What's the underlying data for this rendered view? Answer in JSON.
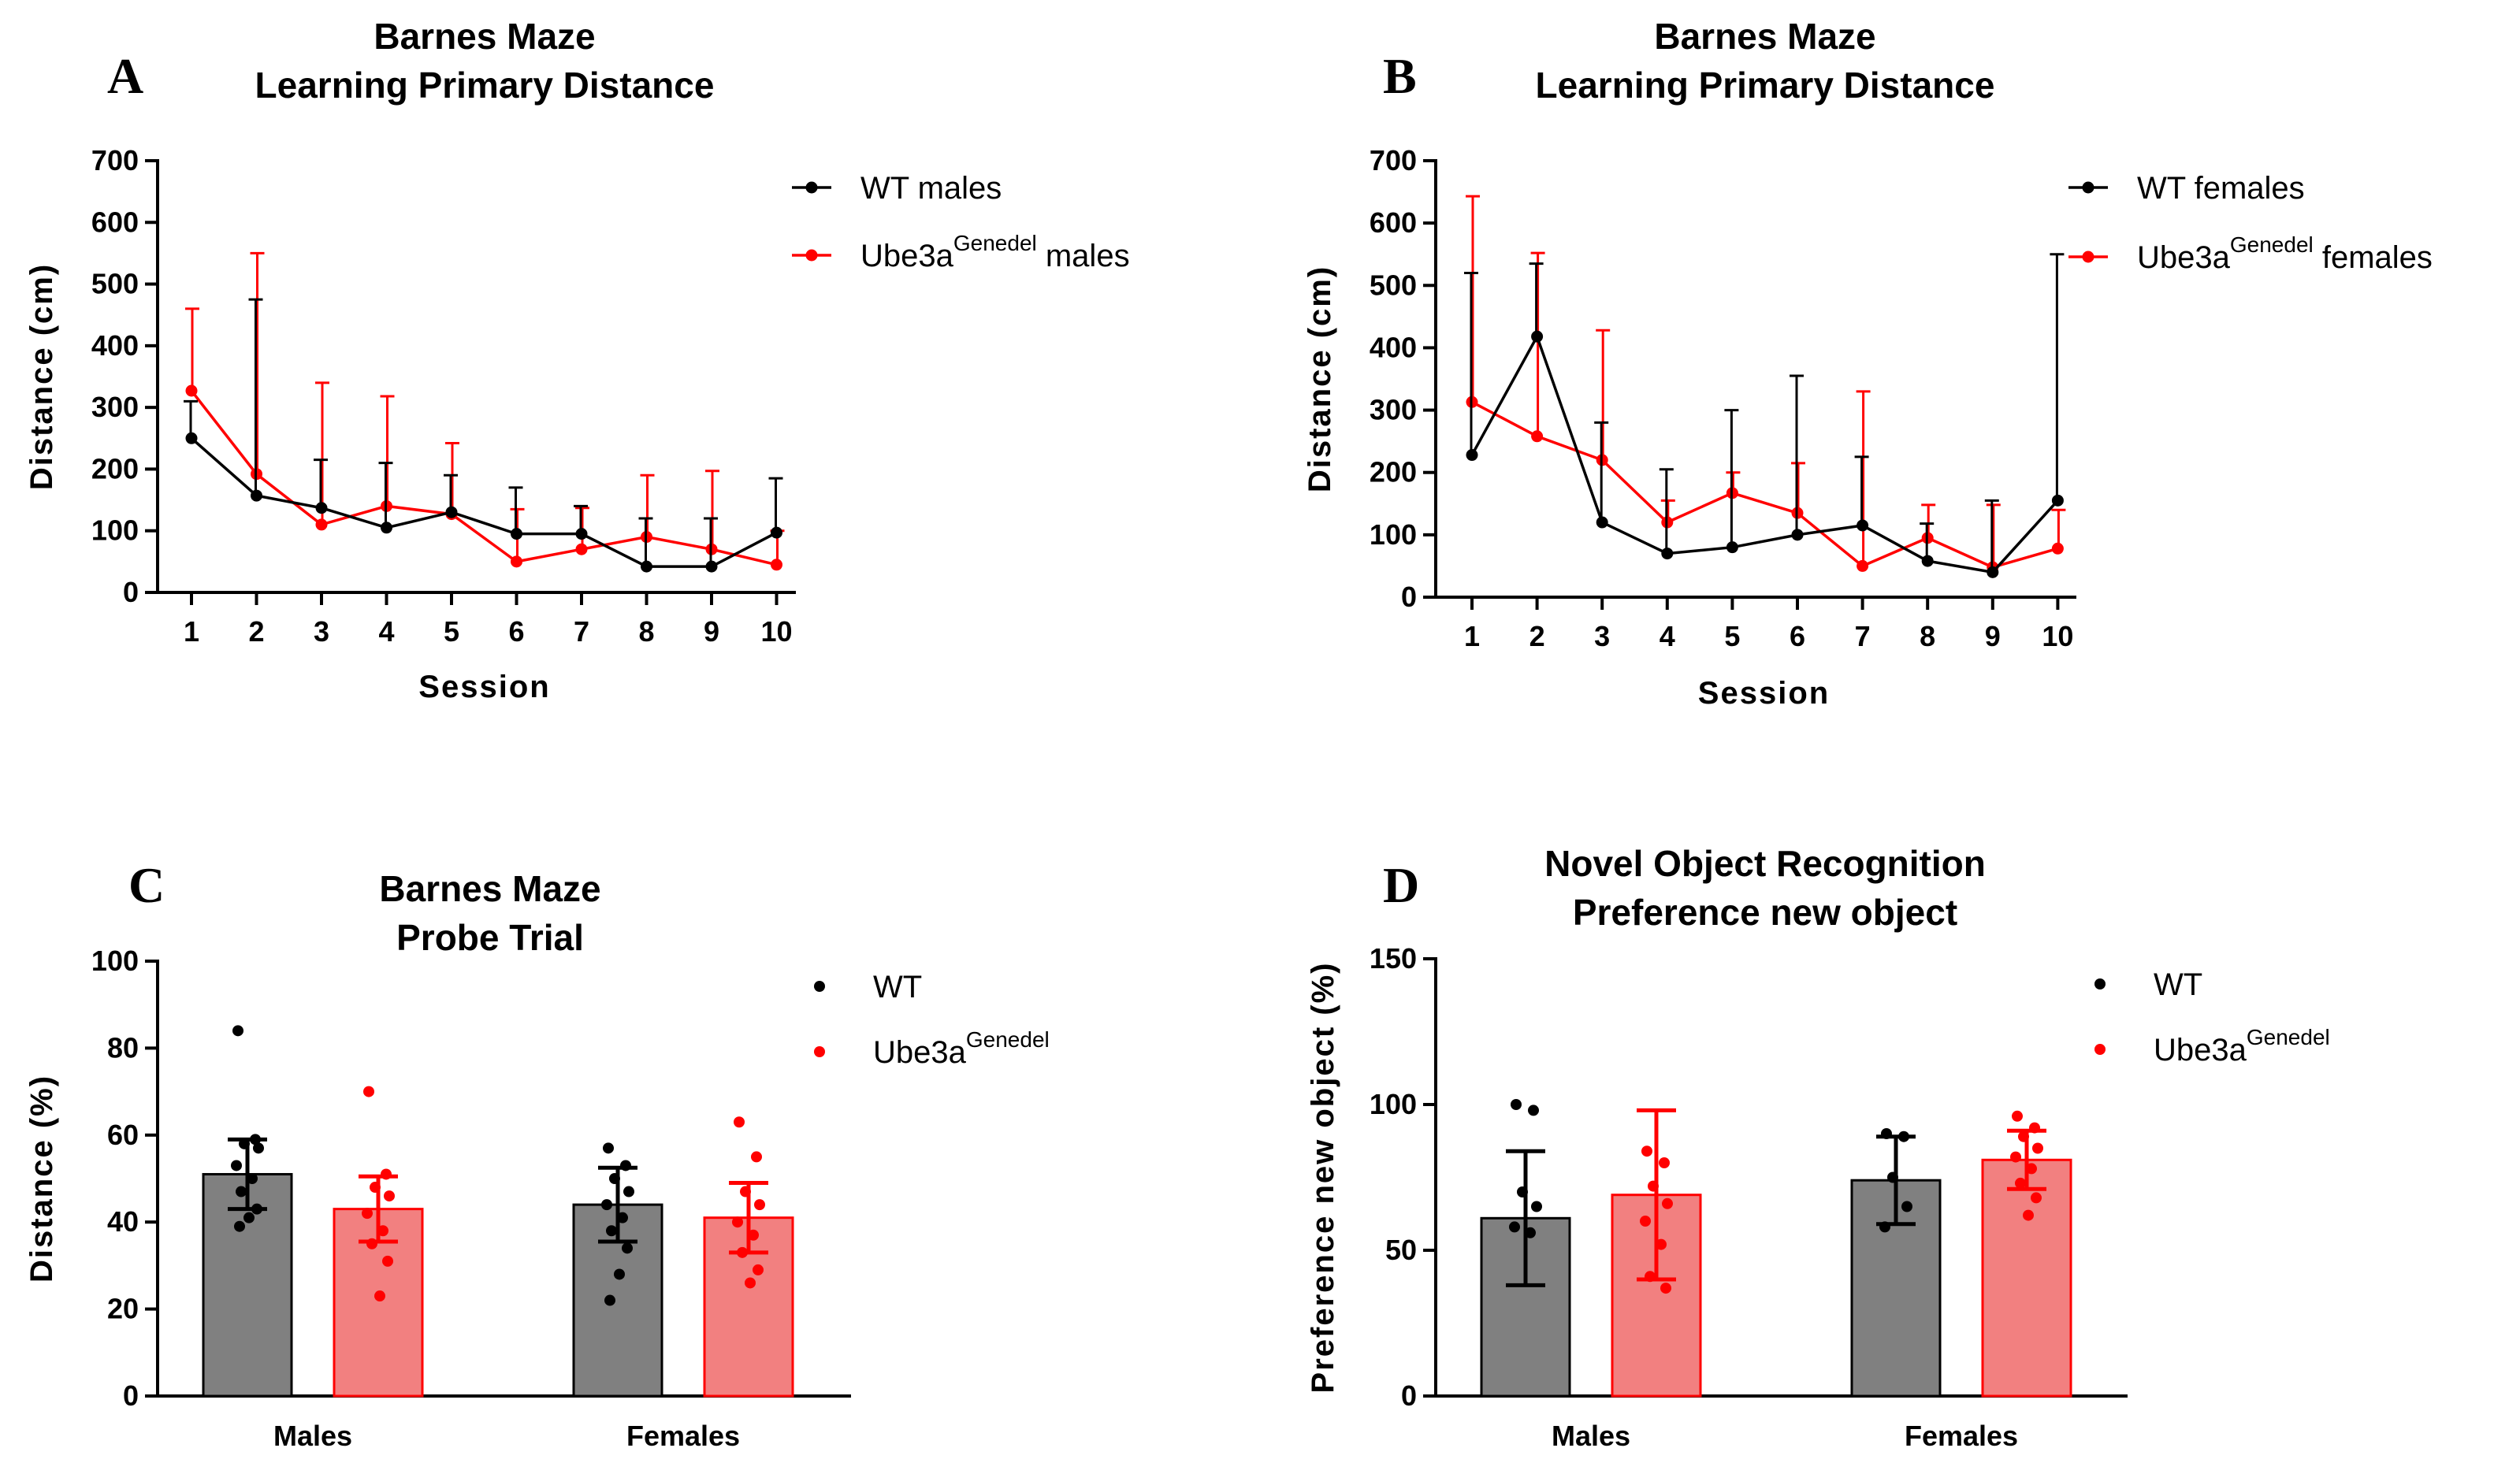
{
  "chart_data": [
    {
      "panel": "A",
      "type": "line",
      "title": [
        "Barnes Maze",
        "Learning Primary Distance"
      ],
      "xlabel": "Session",
      "ylabel": "Distance (cm)",
      "categories": [
        "1",
        "2",
        "3",
        "4",
        "5",
        "6",
        "7",
        "8",
        "9",
        "10"
      ],
      "ylim": [
        0,
        700
      ],
      "yticks": [
        0,
        100,
        200,
        300,
        400,
        500,
        600,
        700
      ],
      "legend_position": "top-right",
      "series": [
        {
          "name": "WT males",
          "color": "#000000",
          "legend": {
            "base": "WT males",
            "sup": "",
            "suffix": ""
          },
          "values": [
            250,
            157,
            137,
            105,
            130,
            95,
            95,
            42,
            42,
            97
          ],
          "error_upper": [
            310,
            475,
            215,
            210,
            190,
            170,
            140,
            120,
            120,
            185
          ]
        },
        {
          "name": "Ube3aGenedel males",
          "color": "#ff0000",
          "legend": {
            "base": "Ube3a",
            "sup": "Genedel",
            "suffix": " males"
          },
          "values": [
            327,
            192,
            110,
            140,
            127,
            50,
            70,
            90,
            70,
            45
          ],
          "error_upper": [
            460,
            550,
            340,
            318,
            242,
            135,
            137,
            190,
            197,
            100
          ]
        }
      ]
    },
    {
      "panel": "B",
      "type": "line",
      "title": [
        "Barnes Maze",
        "Learning Primary Distance"
      ],
      "xlabel": "Session",
      "ylabel": "Distance (cm)",
      "categories": [
        "1",
        "2",
        "3",
        "4",
        "5",
        "6",
        "7",
        "8",
        "9",
        "10"
      ],
      "ylim": [
        0,
        700
      ],
      "yticks": [
        0,
        100,
        200,
        300,
        400,
        500,
        600,
        700
      ],
      "legend_position": "top-right",
      "series": [
        {
          "name": "WT females",
          "color": "#000000",
          "legend": {
            "base": "WT females",
            "sup": "",
            "suffix": ""
          },
          "values": [
            228,
            418,
            120,
            70,
            80,
            100,
            115,
            58,
            40,
            155
          ],
          "error_upper": [
            520,
            535,
            280,
            205,
            300,
            355,
            225,
            118,
            155,
            550
          ]
        },
        {
          "name": "Ube3aGenedel females",
          "color": "#ff0000",
          "legend": {
            "base": "Ube3a",
            "sup": "Genedel",
            "suffix": " females"
          },
          "values": [
            313,
            258,
            220,
            120,
            167,
            135,
            50,
            95,
            48,
            78
          ],
          "error_upper": [
            643,
            552,
            428,
            155,
            200,
            215,
            330,
            148,
            148,
            140
          ]
        }
      ]
    },
    {
      "panel": "C",
      "type": "bar",
      "title": [
        "Barnes Maze",
        "Probe Trial"
      ],
      "xlabel": "",
      "ylabel": "Distance (%)",
      "categories": [
        "Males",
        "Females"
      ],
      "ylim": [
        0,
        100
      ],
      "yticks": [
        0,
        20,
        40,
        60,
        80,
        100
      ],
      "legend_position": "top-right",
      "series": [
        {
          "name": "WT",
          "legend": {
            "base": "WT",
            "sup": "",
            "suffix": ""
          },
          "color": "#000000",
          "bar_color": "#808080",
          "values": [
            51,
            44
          ],
          "sd": [
            8,
            8.5
          ],
          "points": [
            [
              84,
              59,
              58,
              57,
              53,
              50,
              47,
              43,
              41,
              39
            ],
            [
              57,
              53,
              50,
              47,
              44,
              41,
              38,
              34,
              28,
              22
            ]
          ]
        },
        {
          "name": "Ube3aGenedel",
          "legend": {
            "base": "Ube3a",
            "sup": "Genedel",
            "suffix": ""
          },
          "color": "#ff0000",
          "bar_color": "#f28080",
          "values": [
            43,
            41
          ],
          "sd": [
            7.5,
            8
          ],
          "points": [
            [
              70,
              51,
              48,
              46,
              42,
              38,
              35,
              31,
              23
            ],
            [
              63,
              55,
              47,
              44,
              40,
              37,
              33,
              29,
              26
            ]
          ]
        }
      ]
    },
    {
      "panel": "D",
      "type": "bar",
      "title": [
        "Novel Object Recognition",
        "Preference new object"
      ],
      "xlabel": "",
      "ylabel": "Preference new object (%)",
      "categories": [
        "Males",
        "Females"
      ],
      "ylim": [
        0,
        150
      ],
      "yticks": [
        0,
        50,
        100,
        150
      ],
      "legend_position": "top-right",
      "series": [
        {
          "name": "WT",
          "legend": {
            "base": "WT",
            "sup": "",
            "suffix": ""
          },
          "color": "#000000",
          "bar_color": "#808080",
          "values": [
            61,
            74
          ],
          "sd": [
            23,
            15
          ],
          "points": [
            [
              100,
              98,
              70,
              65,
              58,
              56
            ],
            [
              90,
              89,
              75,
              65,
              58
            ]
          ]
        },
        {
          "name": "Ube3aGenedel",
          "legend": {
            "base": "Ube3a",
            "sup": "Genedel",
            "suffix": ""
          },
          "color": "#ff0000",
          "bar_color": "#f28080",
          "values": [
            69,
            81
          ],
          "sd": [
            29,
            10
          ],
          "points": [
            [
              84,
              80,
              72,
              66,
              60,
              52,
              41,
              37
            ],
            [
              96,
              92,
              89,
              85,
              82,
              78,
              73,
              68,
              62
            ]
          ]
        }
      ]
    }
  ]
}
